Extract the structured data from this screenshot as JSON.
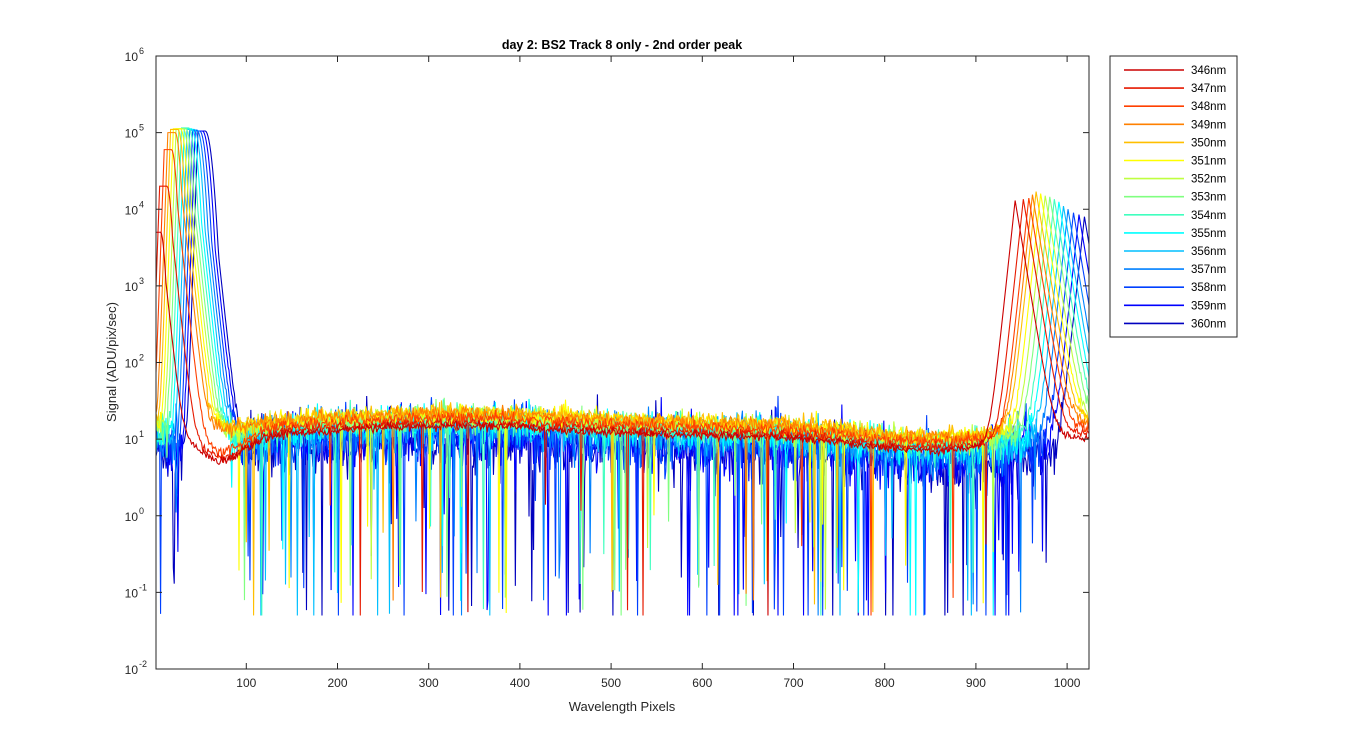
{
  "chart_data": {
    "type": "line",
    "title": "day 2: BS2   Track 8 only - 2nd order peak",
    "xlabel": "Wavelength Pixels",
    "ylabel": "Signal (ADU/pix/sec)",
    "xlim": [
      1,
      1024
    ],
    "ylim_log10": [
      -2,
      6
    ],
    "yscale": "log",
    "x_ticks": [
      100,
      200,
      300,
      400,
      500,
      600,
      700,
      800,
      900,
      1000
    ],
    "y_ticks": [
      {
        "base": "10",
        "exp": "-2"
      },
      {
        "base": "10",
        "exp": "-1"
      },
      {
        "base": "10",
        "exp": "0"
      },
      {
        "base": "10",
        "exp": "1"
      },
      {
        "base": "10",
        "exp": "2"
      },
      {
        "base": "10",
        "exp": "3"
      },
      {
        "base": "10",
        "exp": "4"
      },
      {
        "base": "10",
        "exp": "5"
      },
      {
        "base": "10",
        "exp": "6"
      }
    ],
    "legend_position": "outside-right",
    "series": [
      {
        "name": "346nm",
        "color": "#cc0000",
        "peak1_pixel": 2,
        "peak1_value": 5000,
        "peak2_pixel": 943,
        "peak2_value": 13000,
        "baseline": 11,
        "noise_sigma": 0.06
      },
      {
        "name": "347nm",
        "color": "#e61a00",
        "peak1_pixel": 9,
        "peak1_value": 20000,
        "peak2_pixel": 952,
        "peak2_value": 13500,
        "baseline": 12,
        "noise_sigma": 0.07
      },
      {
        "name": "348nm",
        "color": "#ff4000",
        "peak1_pixel": 14,
        "peak1_value": 60000,
        "peak2_pixel": 958,
        "peak2_value": 14000,
        "baseline": 14,
        "noise_sigma": 0.09
      },
      {
        "name": "349nm",
        "color": "#ff8000",
        "peak1_pixel": 18,
        "peak1_value": 100000,
        "peak2_pixel": 962,
        "peak2_value": 15500,
        "baseline": 16,
        "noise_sigma": 0.11
      },
      {
        "name": "350nm",
        "color": "#ffbf00",
        "peak1_pixel": 21,
        "peak1_value": 110000,
        "peak2_pixel": 966,
        "peak2_value": 17000,
        "baseline": 17,
        "noise_sigma": 0.12
      },
      {
        "name": "351nm",
        "color": "#ffff00",
        "peak1_pixel": 24,
        "peak1_value": 112000,
        "peak2_pixel": 971,
        "peak2_value": 16000,
        "baseline": 16,
        "noise_sigma": 0.14
      },
      {
        "name": "352nm",
        "color": "#bfff40",
        "peak1_pixel": 27,
        "peak1_value": 112000,
        "peak2_pixel": 976,
        "peak2_value": 15000,
        "baseline": 15,
        "noise_sigma": 0.16
      },
      {
        "name": "353nm",
        "color": "#80ff80",
        "peak1_pixel": 30,
        "peak1_value": 112000,
        "peak2_pixel": 981,
        "peak2_value": 14500,
        "baseline": 14,
        "noise_sigma": 0.19
      },
      {
        "name": "354nm",
        "color": "#40ffbf",
        "peak1_pixel": 33,
        "peak1_value": 115000,
        "peak2_pixel": 986,
        "peak2_value": 13500,
        "baseline": 13,
        "noise_sigma": 0.22
      },
      {
        "name": "355nm",
        "color": "#00ffff",
        "peak1_pixel": 36,
        "peak1_value": 112000,
        "peak2_pixel": 991,
        "peak2_value": 12500,
        "baseline": 12,
        "noise_sigma": 0.25
      },
      {
        "name": "356nm",
        "color": "#00bfff",
        "peak1_pixel": 39,
        "peak1_value": 110000,
        "peak2_pixel": 996,
        "peak2_value": 11000,
        "baseline": 11,
        "noise_sigma": 0.29
      },
      {
        "name": "357nm",
        "color": "#0080ff",
        "peak1_pixel": 42,
        "peak1_value": 108000,
        "peak2_pixel": 1001,
        "peak2_value": 10000,
        "baseline": 10,
        "noise_sigma": 0.33
      },
      {
        "name": "358nm",
        "color": "#0040ff",
        "peak1_pixel": 45,
        "peak1_value": 105000,
        "peak2_pixel": 1007,
        "peak2_value": 9000,
        "baseline": 9,
        "noise_sigma": 0.38
      },
      {
        "name": "359nm",
        "color": "#0000ff",
        "peak1_pixel": 48,
        "peak1_value": 105000,
        "peak2_pixel": 1013,
        "peak2_value": 8500,
        "baseline": 8,
        "noise_sigma": 0.43
      },
      {
        "name": "360nm",
        "color": "#0000bf",
        "peak1_pixel": 51,
        "peak1_value": 105000,
        "peak2_pixel": 1019,
        "peak2_value": 8000,
        "baseline": 7,
        "noise_sigma": 0.48
      }
    ]
  }
}
